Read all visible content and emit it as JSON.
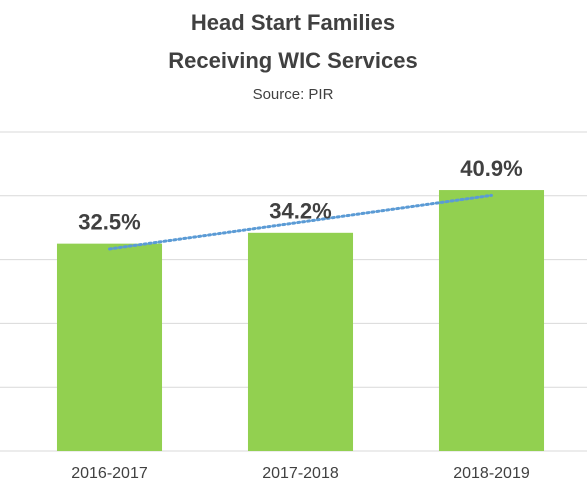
{
  "chart_data": {
    "type": "bar",
    "title": [
      "Head Start Families",
      "Receiving WIC Services"
    ],
    "subtitle": "Source: PIR",
    "categories": [
      "2016-2017",
      "2017-2018",
      "2018-2019"
    ],
    "values": [
      32.5,
      34.2,
      40.9
    ],
    "value_labels": [
      "32.5%",
      "34.2%",
      "40.9%"
    ],
    "color": "#92d050",
    "ylim": [
      0,
      50
    ],
    "yticks": [
      0,
      10,
      20,
      30,
      40,
      50
    ],
    "grid": true,
    "trendline": {
      "type": "linear",
      "color": "#5b9bd5"
    }
  }
}
